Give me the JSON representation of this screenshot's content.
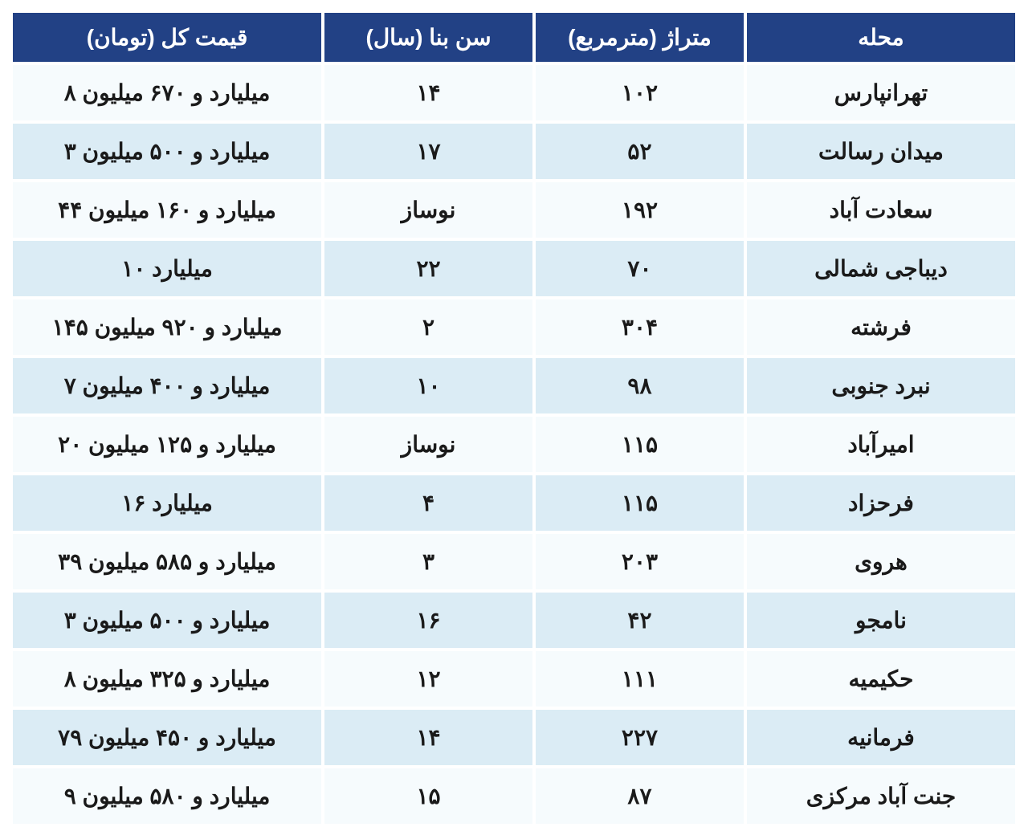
{
  "table": {
    "type": "table",
    "header_bg": "#224185",
    "header_fg": "#ffffff",
    "row_odd_bg": "#f6fbfd",
    "row_even_bg": "#dbecf5",
    "cell_fg": "#1a1a1a",
    "border_color": "#ffffff",
    "header_fontsize": 28,
    "cell_fontsize": 28,
    "columns": [
      {
        "key": "price",
        "label": "قیمت کل (تومان)",
        "width_pct": 31
      },
      {
        "key": "age",
        "label": "سن بنا (سال)",
        "width_pct": 21
      },
      {
        "key": "area",
        "label": "متراژ (مترمربع)",
        "width_pct": 21
      },
      {
        "key": "loc",
        "label": "محله",
        "width_pct": 27
      }
    ],
    "rows": [
      {
        "price": "۸ میلیارد و ۶۷۰ میلیون",
        "age": "۱۴",
        "area": "۱۰۲",
        "loc": "تهرانپارس"
      },
      {
        "price": "۳ میلیارد و ۵۰۰ میلیون",
        "age": "۱۷",
        "area": "۵۲",
        "loc": "میدان رسالت"
      },
      {
        "price": "۴۴ میلیارد و ۱۶۰ میلیون",
        "age": "نوساز",
        "area": "۱۹۲",
        "loc": "سعادت آباد"
      },
      {
        "price": "۱۰ میلیارد",
        "age": "۲۲",
        "area": "۷۰",
        "loc": "دیباجی شمالی"
      },
      {
        "price": "۱۴۵ میلیارد و ۹۲۰ میلیون",
        "age": "۲",
        "area": "۳۰۴",
        "loc": "فرشته"
      },
      {
        "price": "۷ میلیارد و ۴۰۰ میلیون",
        "age": "۱۰",
        "area": "۹۸",
        "loc": "نبرد جنوبی"
      },
      {
        "price": "۲۰ میلیارد و ۱۲۵ میلیون",
        "age": "نوساز",
        "area": "۱۱۵",
        "loc": "امیرآباد"
      },
      {
        "price": "۱۶ میلیارد",
        "age": "۴",
        "area": "۱۱۵",
        "loc": "فرحزاد"
      },
      {
        "price": "۳۹ میلیارد و ۵۸۵ میلیون",
        "age": "۳",
        "area": "۲۰۳",
        "loc": "هروی"
      },
      {
        "price": "۳ میلیارد و ۵۰۰ میلیون",
        "age": "۱۶",
        "area": "۴۲",
        "loc": "نامجو"
      },
      {
        "price": "۸ میلیارد و ۳۲۵ میلیون",
        "age": "۱۲",
        "area": "۱۱۱",
        "loc": "حکیمیه"
      },
      {
        "price": "۷۹ میلیارد و ۴۵۰ میلیون",
        "age": "۱۴",
        "area": "۲۲۷",
        "loc": "فرمانیه"
      },
      {
        "price": "۹ میلیارد و ۵۸۰ میلیون",
        "age": "۱۵",
        "area": "۸۷",
        "loc": "جنت آباد مرکزی"
      }
    ]
  }
}
